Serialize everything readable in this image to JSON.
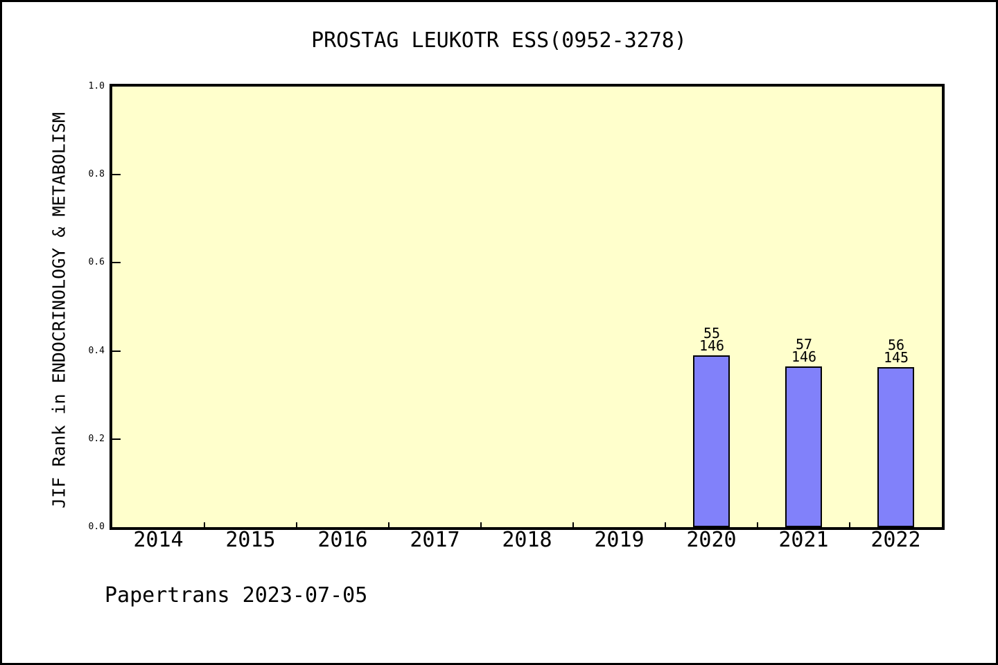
{
  "page": {
    "title": "PROSTAG LEUKOTR ESS(0952-3278)",
    "footer": "Papertrans 2023-07-05"
  },
  "colors": {
    "page_bg": "#ffffff",
    "page_border": "#000000",
    "plot_bg": "#ffffcc",
    "plot_border": "#000000",
    "bar_fill": "#8181fa",
    "bar_border": "#000000",
    "text": "#000000"
  },
  "chart_data": {
    "type": "bar",
    "title": "PROSTAG LEUKOTR ESS(0952-3278)",
    "xlabel": "",
    "ylabel": "JIF Rank in ENDOCRINOLOGY & METABOLISM",
    "categories": [
      "2014",
      "2015",
      "2016",
      "2017",
      "2018",
      "2019",
      "2020",
      "2021",
      "2022"
    ],
    "ylim": [
      0.0,
      1.0
    ],
    "yticks": [
      {
        "v": 0.0,
        "label": "0.0"
      },
      {
        "v": 0.2,
        "label": "0.2"
      },
      {
        "v": 0.4,
        "label": "0.4"
      },
      {
        "v": 0.6,
        "label": "0.6"
      },
      {
        "v": 0.8,
        "label": "0.8"
      },
      {
        "v": 1.0,
        "label": "1.0"
      }
    ],
    "grid": false,
    "legend": null,
    "bars": [
      {
        "category": "2020",
        "rank": "55",
        "total": "146",
        "value": 0.39
      },
      {
        "category": "2021",
        "rank": "57",
        "total": "146",
        "value": 0.365
      },
      {
        "category": "2022",
        "rank": "56",
        "total": "145",
        "value": 0.363
      }
    ],
    "annotation": "Papertrans 2023-07-05"
  }
}
